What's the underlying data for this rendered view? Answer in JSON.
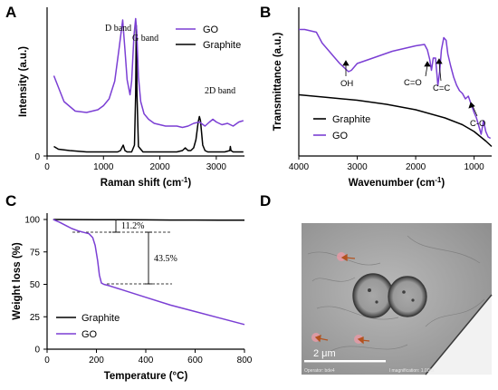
{
  "colors": {
    "go": "#7b3fd4",
    "graphite": "#000000"
  },
  "panels": {
    "a": {
      "letter": "A",
      "chart_data": {
        "type": "line",
        "xlabel_main": "Raman shift (cm",
        "xlabel_sup": "-1",
        "xlabel_end": ")",
        "ylabel": "Intensity (a.u.)",
        "xlim": [
          0,
          3500
        ],
        "xticks": [
          "0",
          "1000",
          "2000",
          "3000"
        ],
        "yticks": [
          "0"
        ],
        "legend": [
          "GO",
          "Graphite"
        ],
        "annotations": [
          "D band",
          "G band",
          "2D band"
        ],
        "series": [
          {
            "name": "GO",
            "x": [
              120,
              300,
              500,
              700,
              900,
              1000,
              1100,
              1200,
              1280,
              1340,
              1380,
              1420,
              1470,
              1500,
              1540,
              1570,
              1590,
              1620,
              1660,
              1720,
              1800,
              1900,
              2000,
              2100,
              2200,
              2300,
              2400,
              2500,
              2600,
              2700,
              2800,
              2880,
              2940,
              3000,
              3100,
              3200,
              3300,
              3400,
              3480
            ],
            "y": [
              0.59,
              0.4,
              0.33,
              0.32,
              0.34,
              0.37,
              0.42,
              0.55,
              0.8,
              1.0,
              0.78,
              0.56,
              0.45,
              0.55,
              0.88,
              1.01,
              0.92,
              0.58,
              0.4,
              0.31,
              0.27,
              0.24,
              0.23,
              0.22,
              0.22,
              0.22,
              0.21,
              0.22,
              0.24,
              0.25,
              0.22,
              0.25,
              0.27,
              0.25,
              0.23,
              0.24,
              0.22,
              0.25,
              0.26
            ]
          },
          {
            "name": "Graphite",
            "x": [
              120,
              200,
              400,
              700,
              1000,
              1250,
              1300,
              1350,
              1380,
              1420,
              1500,
              1550,
              1570,
              1582,
              1595,
              1620,
              1700,
              1900,
              2100,
              2300,
              2400,
              2450,
              2500,
              2550,
              2600,
              2640,
              2680,
              2700,
              2720,
              2760,
              2800,
              2850,
              3000,
              3150,
              3240,
              3250,
              3260,
              3300,
              3480
            ],
            "y": [
              0.07,
              0.05,
              0.04,
              0.03,
              0.03,
              0.03,
              0.04,
              0.08,
              0.04,
              0.03,
              0.03,
              0.08,
              0.45,
              0.96,
              0.45,
              0.07,
              0.03,
              0.03,
              0.03,
              0.03,
              0.04,
              0.06,
              0.04,
              0.04,
              0.06,
              0.12,
              0.25,
              0.29,
              0.26,
              0.08,
              0.04,
              0.03,
              0.03,
              0.03,
              0.04,
              0.07,
              0.04,
              0.03,
              0.03
            ]
          }
        ]
      }
    },
    "b": {
      "letter": "B",
      "chart_data": {
        "type": "line",
        "xlabel_main": "Wavenumber (cm",
        "xlabel_sup": "-1",
        "xlabel_end": ")",
        "ylabel": "Transmittance (a.u.)",
        "xlim": [
          4000,
          700
        ],
        "xticks": [
          "4000",
          "3000",
          "2000",
          "1000"
        ],
        "legend": [
          "Graphite",
          "GO"
        ],
        "annotations": [
          "OH",
          "C=O",
          "C=C",
          "C-O"
        ],
        "series": [
          {
            "name": "GO",
            "x": [
              4000,
              3900,
              3700,
              3600,
              3500,
              3400,
              3300,
              3200,
              3150,
              3100,
              3000,
              2800,
              2600,
              2400,
              2200,
              2000,
              1850,
              1800,
              1760,
              1730,
              1720,
              1700,
              1660,
              1640,
              1620,
              1590,
              1560,
              1520,
              1480,
              1450,
              1400,
              1350,
              1300,
              1250,
              1200,
              1150,
              1100,
              1050,
              1000,
              960,
              920,
              880,
              840,
              800,
              760,
              720
            ],
            "y": [
              0.93,
              0.93,
              0.91,
              0.83,
              0.78,
              0.73,
              0.68,
              0.64,
              0.62,
              0.63,
              0.68,
              0.71,
              0.74,
              0.77,
              0.79,
              0.81,
              0.82,
              0.78,
              0.71,
              0.63,
              0.66,
              0.72,
              0.72,
              0.62,
              0.52,
              0.62,
              0.78,
              0.87,
              0.85,
              0.75,
              0.66,
              0.58,
              0.52,
              0.48,
              0.46,
              0.42,
              0.44,
              0.38,
              0.32,
              0.28,
              0.22,
              0.16,
              0.26,
              0.18,
              0.14,
              0.13
            ]
          },
          {
            "name": "Graphite",
            "x": [
              4000,
              3500,
              3000,
              2500,
              2000,
              1500,
              1200,
              1000,
              800,
              700
            ],
            "y": [
              0.45,
              0.43,
              0.41,
              0.38,
              0.34,
              0.28,
              0.23,
              0.18,
              0.11,
              0.07
            ]
          }
        ]
      }
    },
    "c": {
      "letter": "C",
      "chart_data": {
        "type": "line",
        "xlabel": "Temperature (°C)",
        "ylabel": "Weight loss (%)",
        "xlim": [
          0,
          800
        ],
        "ylim": [
          0,
          100
        ],
        "xticks": [
          "0",
          "200",
          "400",
          "600",
          "800"
        ],
        "yticks": [
          "0",
          "25",
          "50",
          "75",
          "100"
        ],
        "legend": [
          "Graphite",
          "GO"
        ],
        "annotations": [
          "11.2%",
          "43.5%"
        ],
        "series": [
          {
            "name": "Graphite",
            "x": [
              25,
              100,
              200,
              300,
              400,
              500,
              600,
              700,
              800
            ],
            "y": [
              100,
              99.9,
              99.8,
              99.8,
              99.7,
              99.6,
              99.6,
              99.5,
              99.5
            ]
          },
          {
            "name": "GO",
            "x": [
              25,
              50,
              80,
              100,
              130,
              150,
              170,
              185,
              195,
              205,
              212,
              220,
              230,
              250,
              300,
              400,
              500,
              600,
              700,
              800
            ],
            "y": [
              100,
              98,
              95,
              93,
              91,
              90,
              89,
              86,
              80,
              68,
              57,
              51,
              50,
              49,
              46,
              40,
              34,
              29,
              24,
              19
            ]
          }
        ]
      }
    },
    "d": {
      "letter": "D",
      "scale_bar": "2 μm",
      "caption_left": "Operator: bde4",
      "caption_right": "l magnification: 1.00kx"
    }
  }
}
